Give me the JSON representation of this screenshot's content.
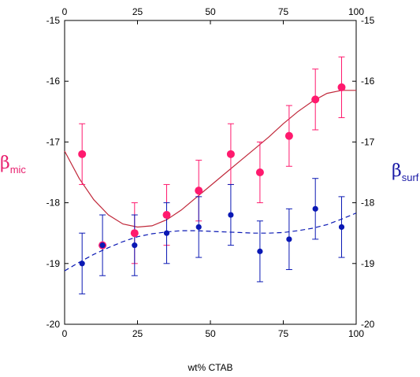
{
  "chart_data": {
    "type": "scatter",
    "xlabel": "wt% CTAB",
    "xlim": [
      0,
      100
    ],
    "ylim": [
      -20,
      -15
    ],
    "x_ticks": [
      0,
      25,
      50,
      75,
      100
    ],
    "y_ticks": [
      -20,
      -19,
      -18,
      -17,
      -16,
      -15
    ],
    "grid": false,
    "left_axis_label": {
      "symbol": "β",
      "subscript": "mic",
      "color": "#e8206e"
    },
    "right_axis_label": {
      "symbol": "β",
      "subscript": "surf",
      "color": "#1a1aa6"
    },
    "series": [
      {
        "name": "β mic",
        "color": "#ff1a6e",
        "x": [
          6,
          13,
          24,
          35,
          46,
          57,
          67,
          77,
          86,
          95
        ],
        "y": [
          -17.2,
          -18.7,
          -18.5,
          -18.2,
          -17.8,
          -17.2,
          -17.5,
          -16.9,
          -16.3,
          -16.1
        ],
        "err": [
          0.5,
          0,
          0.5,
          0.5,
          0.5,
          0.5,
          0.5,
          0.5,
          0.5,
          0.5
        ],
        "fit": {
          "style": "solid",
          "color": "#c0283a",
          "x": [
            0,
            5,
            10,
            15,
            20,
            25,
            30,
            35,
            40,
            45,
            50,
            55,
            60,
            65,
            70,
            75,
            80,
            85,
            90,
            95,
            100
          ],
          "y": [
            -17.15,
            -17.6,
            -17.95,
            -18.2,
            -18.35,
            -18.4,
            -18.38,
            -18.28,
            -18.12,
            -17.92,
            -17.72,
            -17.52,
            -17.32,
            -17.12,
            -16.92,
            -16.7,
            -16.5,
            -16.33,
            -16.2,
            -16.15,
            -16.15
          ]
        }
      },
      {
        "name": "β surf",
        "color": "#0a18b4",
        "x": [
          6,
          13,
          24,
          35,
          46,
          57,
          67,
          77,
          86,
          95
        ],
        "y": [
          -19.0,
          -18.7,
          -18.7,
          -18.5,
          -18.4,
          -18.2,
          -18.8,
          -18.6,
          -18.1,
          -18.4
        ],
        "err": [
          0.5,
          0.5,
          0.5,
          0.5,
          0.5,
          0.5,
          0.5,
          0.5,
          0.5,
          0.5
        ],
        "fit": {
          "style": "dashed",
          "color": "#0a18b4",
          "x": [
            0,
            5,
            10,
            15,
            20,
            25,
            30,
            35,
            40,
            45,
            50,
            55,
            60,
            65,
            70,
            75,
            80,
            85,
            90,
            95,
            100
          ],
          "y": [
            -19.12,
            -18.98,
            -18.85,
            -18.74,
            -18.64,
            -18.56,
            -18.51,
            -18.48,
            -18.46,
            -18.46,
            -18.47,
            -18.48,
            -18.49,
            -18.5,
            -18.5,
            -18.49,
            -18.46,
            -18.42,
            -18.36,
            -18.27,
            -18.17
          ]
        }
      }
    ]
  }
}
